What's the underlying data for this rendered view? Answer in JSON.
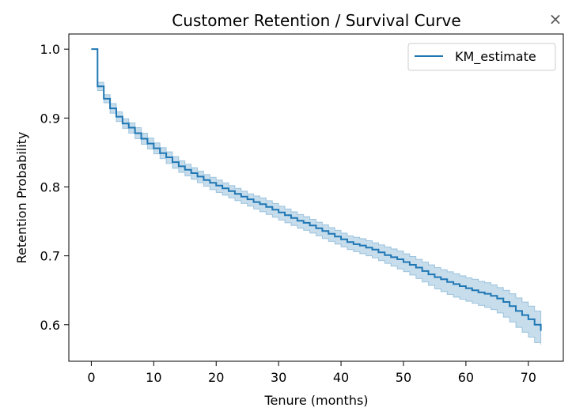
{
  "chart_data": {
    "type": "line",
    "title": "Customer Retention / Survival Curve",
    "xlabel": "Tenure (months)",
    "ylabel": "Retention Probability",
    "xlim": [
      -3.6,
      75.6
    ],
    "ylim": [
      0.547,
      1.022
    ],
    "xticks": [
      0,
      10,
      20,
      30,
      40,
      50,
      60,
      70
    ],
    "yticks": [
      0.6,
      0.7,
      0.8,
      0.9,
      1.0
    ],
    "ytick_labels": [
      "0.6",
      "0.7",
      "0.8",
      "0.9",
      "1.0"
    ],
    "grid": false,
    "legend_position": "top-right",
    "series": [
      {
        "name": "KM_estimate",
        "color": "#1f77b4",
        "step": "post",
        "x": [
          0,
          1,
          2,
          3,
          4,
          5,
          6,
          7,
          8,
          9,
          10,
          11,
          12,
          13,
          14,
          15,
          16,
          17,
          18,
          19,
          20,
          21,
          22,
          23,
          24,
          25,
          26,
          27,
          28,
          29,
          30,
          31,
          32,
          33,
          34,
          35,
          36,
          37,
          38,
          39,
          40,
          41,
          42,
          43,
          44,
          45,
          46,
          47,
          48,
          49,
          50,
          51,
          52,
          53,
          54,
          55,
          56,
          57,
          58,
          59,
          60,
          61,
          62,
          63,
          64,
          65,
          66,
          67,
          68,
          69,
          70,
          71,
          72
        ],
        "y": [
          1.0,
          0.946,
          0.928,
          0.914,
          0.902,
          0.892,
          0.886,
          0.878,
          0.87,
          0.863,
          0.856,
          0.849,
          0.843,
          0.836,
          0.83,
          0.825,
          0.82,
          0.815,
          0.81,
          0.806,
          0.802,
          0.798,
          0.794,
          0.79,
          0.786,
          0.782,
          0.778,
          0.775,
          0.771,
          0.767,
          0.763,
          0.759,
          0.755,
          0.751,
          0.748,
          0.744,
          0.74,
          0.736,
          0.732,
          0.728,
          0.724,
          0.72,
          0.717,
          0.715,
          0.712,
          0.709,
          0.705,
          0.701,
          0.698,
          0.695,
          0.691,
          0.687,
          0.683,
          0.678,
          0.673,
          0.669,
          0.666,
          0.662,
          0.659,
          0.656,
          0.653,
          0.65,
          0.647,
          0.645,
          0.642,
          0.638,
          0.633,
          0.627,
          0.62,
          0.614,
          0.608,
          0.6,
          0.591
        ],
        "ci_lower": [
          1.0,
          0.94,
          0.922,
          0.907,
          0.895,
          0.885,
          0.878,
          0.87,
          0.862,
          0.855,
          0.848,
          0.841,
          0.834,
          0.827,
          0.821,
          0.816,
          0.811,
          0.806,
          0.801,
          0.796,
          0.792,
          0.788,
          0.784,
          0.78,
          0.776,
          0.772,
          0.768,
          0.764,
          0.76,
          0.756,
          0.752,
          0.748,
          0.744,
          0.74,
          0.737,
          0.733,
          0.729,
          0.725,
          0.721,
          0.717,
          0.713,
          0.709,
          0.706,
          0.703,
          0.7,
          0.697,
          0.693,
          0.689,
          0.685,
          0.681,
          0.677,
          0.672,
          0.667,
          0.662,
          0.657,
          0.652,
          0.648,
          0.644,
          0.64,
          0.637,
          0.634,
          0.631,
          0.628,
          0.625,
          0.622,
          0.617,
          0.611,
          0.604,
          0.596,
          0.589,
          0.582,
          0.574,
          0.571
        ],
        "ci_upper": [
          1.0,
          0.952,
          0.934,
          0.921,
          0.909,
          0.899,
          0.893,
          0.886,
          0.878,
          0.871,
          0.864,
          0.857,
          0.851,
          0.844,
          0.838,
          0.833,
          0.828,
          0.823,
          0.818,
          0.814,
          0.81,
          0.806,
          0.802,
          0.798,
          0.794,
          0.79,
          0.787,
          0.784,
          0.78,
          0.776,
          0.772,
          0.768,
          0.764,
          0.76,
          0.757,
          0.753,
          0.749,
          0.745,
          0.741,
          0.737,
          0.733,
          0.729,
          0.727,
          0.725,
          0.722,
          0.719,
          0.716,
          0.713,
          0.71,
          0.707,
          0.703,
          0.699,
          0.695,
          0.691,
          0.687,
          0.683,
          0.68,
          0.677,
          0.674,
          0.671,
          0.668,
          0.666,
          0.663,
          0.661,
          0.658,
          0.654,
          0.65,
          0.645,
          0.639,
          0.633,
          0.627,
          0.62,
          0.608
        ]
      }
    ]
  },
  "window": {
    "close_glyph": "×"
  }
}
